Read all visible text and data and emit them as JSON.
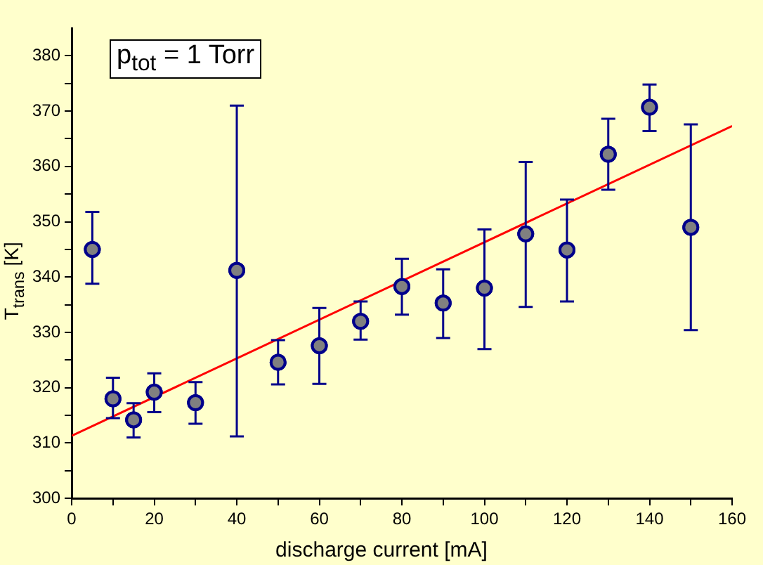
{
  "chart_data": {
    "type": "scatter",
    "xlabel": "discharge current [mA]",
    "ylabel": "T$_{trans}$ [K]",
    "annotations": [
      "p$_{tot}$ = 1 Torr"
    ],
    "xlim": [
      0,
      160
    ],
    "xticks": [
      0,
      {
        "value": 10,
        "label": null
      },
      20,
      {
        "value": 30,
        "label": null
      },
      40,
      {
        "value": 50,
        "label": null
      },
      60,
      {
        "value": 70,
        "label": null
      },
      80,
      {
        "value": 90,
        "label": null
      },
      100,
      {
        "value": 110,
        "label": null
      },
      120,
      {
        "value": 130,
        "label": null
      },
      140,
      {
        "value": 150,
        "label": null
      },
      160
    ],
    "ylim": [
      300,
      385
    ],
    "yticks": [
      300,
      {
        "value": 305,
        "label": null
      },
      310,
      {
        "value": 315,
        "label": null
      },
      320,
      {
        "value": 325,
        "label": null
      },
      330,
      {
        "value": 335,
        "label": null
      },
      340,
      {
        "value": 345,
        "label": null
      },
      350,
      {
        "value": 355,
        "label": null
      },
      360,
      {
        "value": 365,
        "label": null
      },
      370,
      {
        "value": 375,
        "label": null
      },
      380
    ],
    "grid": false,
    "legend": false,
    "series": [
      {
        "type": "scatter",
        "color": "#808080",
        "marker": "circle",
        "x": [
          5,
          10,
          15,
          20,
          30,
          40,
          50,
          60,
          70,
          80,
          90,
          100,
          110,
          120,
          130,
          140,
          150
        ],
        "values": [
          345,
          318,
          314.2,
          319.2,
          317.3,
          341.2,
          324.6,
          327.6,
          332,
          338.3,
          335.3,
          338,
          347.8,
          344.9,
          362.2,
          370.7,
          349
        ],
        "errors": [
          [
            338.8,
            351.8
          ],
          [
            314.5,
            321.8
          ],
          [
            311,
            317.2
          ],
          [
            315.6,
            322.6
          ],
          [
            313.5,
            321
          ],
          [
            311.2,
            371
          ],
          [
            320.6,
            328.6
          ],
          [
            320.7,
            334.4
          ],
          [
            328.7,
            335.6
          ],
          [
            333.2,
            343.3
          ],
          [
            329,
            341.4
          ],
          [
            327,
            348.6
          ],
          [
            334.6,
            360.8
          ],
          [
            335.6,
            354
          ],
          [
            355.8,
            368.6
          ],
          [
            366.4,
            374.8
          ],
          [
            330.4,
            367.6
          ]
        ]
      },
      {
        "type": "line",
        "color": "#ff0000",
        "marker": "none",
        "line_style": "solid",
        "x": [
          0,
          160
        ],
        "values": [
          311.3,
          367.3
        ]
      }
    ]
  }
}
